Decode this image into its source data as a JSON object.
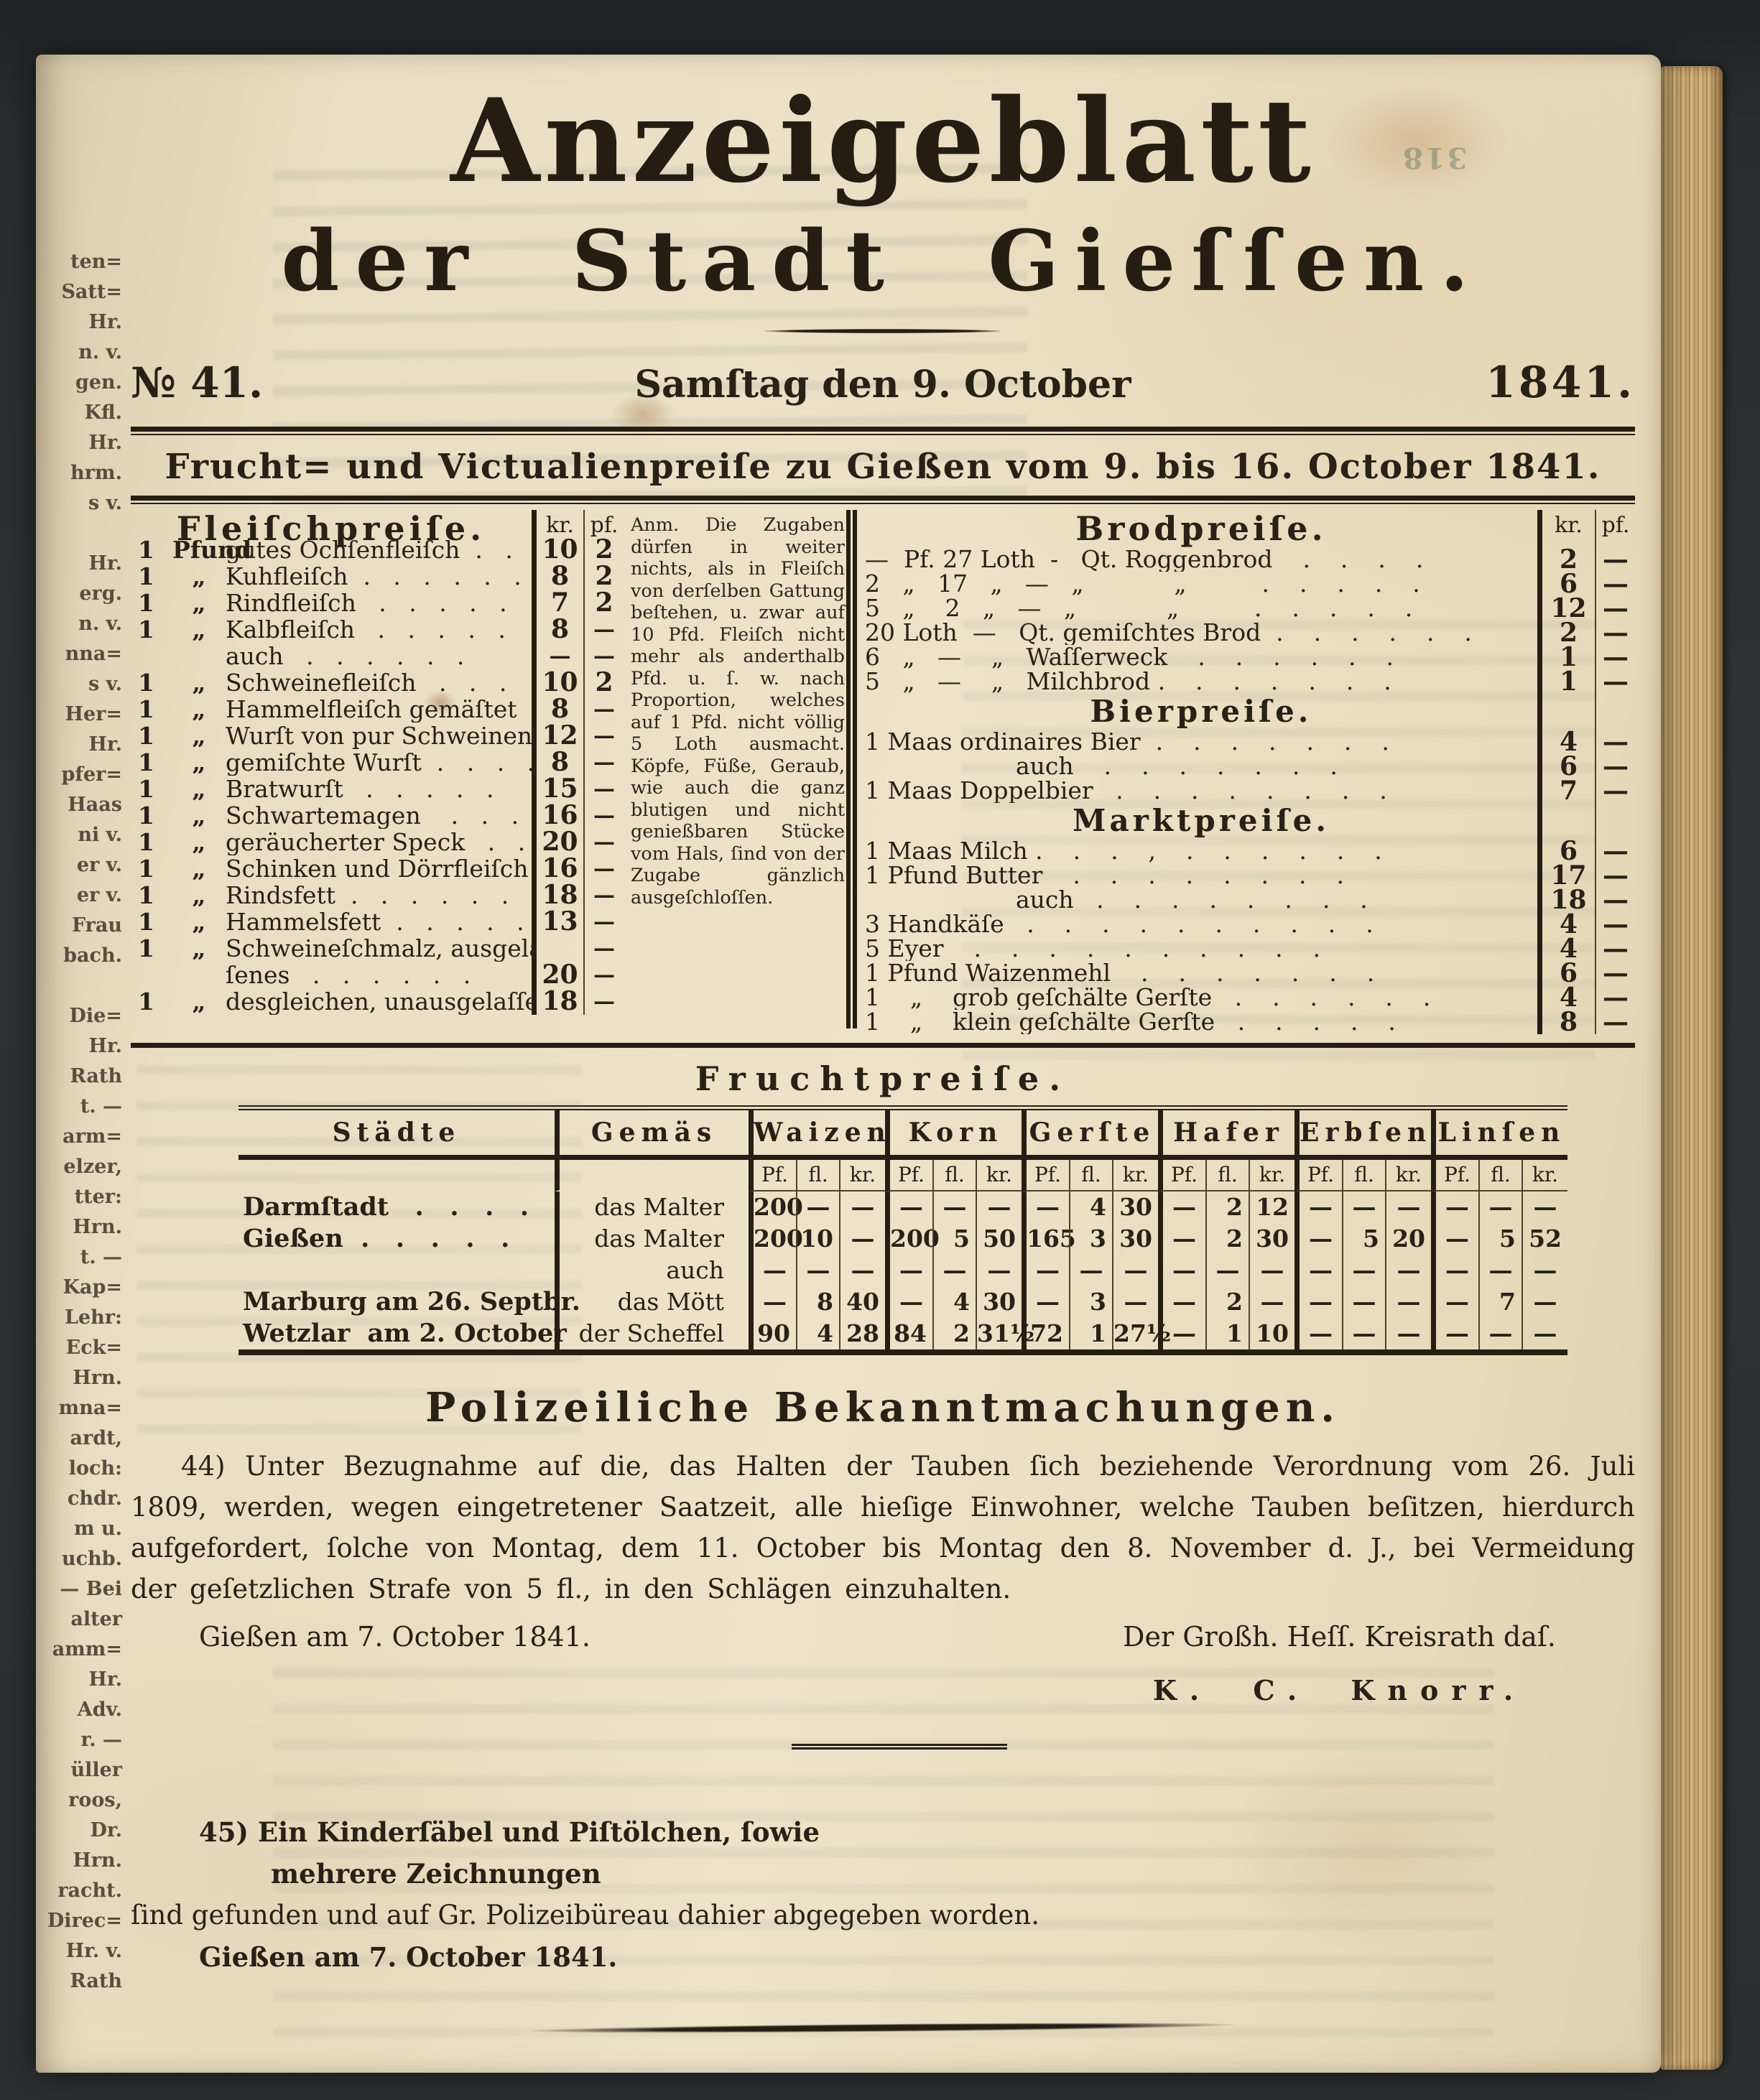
{
  "book": {
    "bleedthrough_page_number": "318"
  },
  "margin_fragments": [
    "ten=",
    "Satt=",
    "Hr.",
    "n. v.",
    "gen.",
    "Kfl.",
    "Hr.",
    "hrm.",
    "s v.",
    "",
    "Hr.",
    "erg.",
    "n. v.",
    "nna=",
    "s v.",
    "Her=",
    "Hr.",
    "pfer=",
    "Haas",
    "ni v.",
    "er v.",
    "er v.",
    "Frau",
    "bach.",
    "",
    "Die=",
    "Hr.",
    "Rath",
    "t. —",
    "arm=",
    "elzer,",
    "tter:",
    "Hrn.",
    "t. —",
    "Kap=",
    "Lehr:",
    "Eck=",
    "Hrn.",
    "mna=",
    "ardt,",
    "loch:",
    "chdr.",
    "m u.",
    "uchb.",
    "— Bei",
    "alter",
    "amm=",
    "Hr.",
    "Adv.",
    "r. —",
    "üller",
    "roos,",
    "Dr.",
    "Hrn.",
    "racht.",
    "Direc=",
    "Hr. v.",
    "Rath"
  ],
  "masthead": {
    "title_line1": "Anzeigeblatt",
    "title_line2": "der Stadt Gieſſen.",
    "issue_no": "№ 41.",
    "issue_date": "Samſtag den 9. October",
    "issue_year": "1841."
  },
  "banner": "Frucht= und Victualienpreiſe zu Gießen vom 9. bis 16. October 1841.",
  "units": {
    "kr": "kr.",
    "pf": "pf."
  },
  "fleisch": {
    "title": "Fleiſchpreiſe.",
    "rows": [
      {
        "q": "1",
        "u": "Pfund",
        "label": "gutes Ochſenfleiſch  .   .   .",
        "kr": "10",
        "pf": "2"
      },
      {
        "q": "1",
        "u": "„",
        "label": "Kuhfleiſch  .   .   .   .   .   .",
        "kr": "8",
        "pf": "2"
      },
      {
        "q": "1",
        "u": "„",
        "label": "Rindfleiſch   .   .   .   .   .",
        "kr": "7",
        "pf": "2"
      },
      {
        "q": "1",
        "u": "„",
        "label": "Kalbfleiſch   .   .   .   .   .",
        "kr": "8",
        "pf": "—"
      },
      {
        "q": "",
        "u": "",
        "label": "auch   .   .   .   .   .   .",
        "kr": "—",
        "pf": "—"
      },
      {
        "q": "1",
        "u": "„",
        "label": "Schweinefleiſch   .   .   .",
        "kr": "10",
        "pf": "2"
      },
      {
        "q": "1",
        "u": "„",
        "label": "Hammelfleiſch gemäſtet   .",
        "kr": "8",
        "pf": "—"
      },
      {
        "q": "1",
        "u": "„",
        "label": "Wurſt von pur Schweinen ,",
        "kr": "12",
        "pf": "—"
      },
      {
        "q": "1",
        "u": "„",
        "label": "gemiſchte Wurſt  .   .   .   .",
        "kr": "8",
        "pf": "—"
      },
      {
        "q": "1",
        "u": "„",
        "label": "Bratwurſt   .   .   .   .   .",
        "kr": "15",
        "pf": "—"
      },
      {
        "q": "1",
        "u": "„",
        "label": "Schwartemagen    .   .   .",
        "kr": "16",
        "pf": "—"
      },
      {
        "q": "1",
        "u": "„",
        "label": "geräucherter Speck   .   .   .",
        "kr": "20",
        "pf": "—"
      },
      {
        "q": "1",
        "u": "„",
        "label": "Schinken und Dörrfleiſch   .",
        "kr": "16",
        "pf": "—"
      },
      {
        "q": "1",
        "u": "„",
        "label": "Rindsfett  .   .   .   .   .   .",
        "kr": "18",
        "pf": "—"
      },
      {
        "q": "1",
        "u": "„",
        "label": "Hammelsfett  .   .   .   .   .",
        "kr": "13",
        "pf": "—"
      },
      {
        "q": "1",
        "u": "„",
        "label": "Schweineſchmalz, ausgelaſ=",
        "kr": "",
        "pf": "—"
      },
      {
        "q": "",
        "u": "",
        "label": "ſenes   .   .   .   .   .   .",
        "kr": "20",
        "pf": "—"
      },
      {
        "q": "1",
        "u": "„",
        "label": "desgleichen, unausgelaſſen",
        "kr": "18",
        "pf": "—"
      }
    ],
    "note": "Anm. Die Zugaben dürfen in weiter nichts, als in Fleiſch von derſelben Gattung beſtehen, u. zwar auf 10 Pfd. Fleiſch nicht mehr als anderthalb Pfd. u. ſ. w. nach Proportion, welches auf 1 Pfd. nicht völlig 5 Loth ausmacht. Köpfe, Füße, Geraub, wie auch die ganz blutigen und nicht genießbaren Stücke vom Hals, ſind von der Zugabe gänzlich ausgeſchloſſen."
  },
  "brod": {
    "title": "Brodpreiſe.",
    "rows": [
      {
        "label": "—  Pf. 27 Loth  -   Qt. Roggenbrod    .    .    .    .",
        "kr": "2",
        "pf": "—"
      },
      {
        "label": "2   „   17   „   —   „            „          .    .    .    .    .",
        "kr": "6",
        "pf": "—"
      },
      {
        "label": "5   „    2   „   —   „            „          .    .    .    .    .",
        "kr": "12",
        "pf": "—"
      },
      {
        "label": "20 Loth  —   Qt. gemiſchtes Brod  .    .    .    .    .    .",
        "kr": "2",
        "pf": "—"
      },
      {
        "label": "6   „   —    „   Waſſerweck    .    .    .    .    .    .",
        "kr": "1",
        "pf": "—"
      },
      {
        "label": "5   „   —    „   Milchbrod .    .    .    .    .    .    .",
        "kr": "1",
        "pf": "—"
      },
      {
        "heading": "Bierpreiſe."
      },
      {
        "label": "1 Maas ordinaires Bier  .    .    .    .    .    .    .",
        "kr": "4",
        "pf": "—"
      },
      {
        "label": "auch    .    .    .    .    .    .    .",
        "kr": "6",
        "pf": "—",
        "indent": 1
      },
      {
        "label": "1 Maas Doppelbier   .    .    .    .    .    .    .    .",
        "kr": "7",
        "pf": "—"
      },
      {
        "heading": "Marktpreiſe."
      },
      {
        "label": "1 Maas Milch .    .    .    ,    .    .    .    .    .    .",
        "kr": "6",
        "pf": "—"
      },
      {
        "label": "1 Pfund Butter    .    .    .    .    .    .    .    .",
        "kr": "17",
        "pf": "—"
      },
      {
        "label": "auch   .    .    .    .    .    .    .    .",
        "kr": "18",
        "pf": "—",
        "indent": 1
      },
      {
        "label": "3 Handkäſe   .    .    .    .    .    .    .    .    .    .",
        "kr": "4",
        "pf": "—"
      },
      {
        "label": "5 Eyer    .    .    .    .    .    .    .    .    .    .",
        "kr": "4",
        "pf": "—"
      },
      {
        "label": "1 Pfund Waizenmehl    .    .    .    .    .    .    .",
        "kr": "6",
        "pf": "—"
      },
      {
        "label": "1    „    grob geſchälte Gerſte   .    .    .    .    .    .",
        "kr": "4",
        "pf": "—"
      },
      {
        "label": "1    „    klein geſchälte Gerſte   .    .    .    .    .",
        "kr": "8",
        "pf": "—"
      }
    ]
  },
  "frucht": {
    "title": "Fruchtpreiſe.",
    "col_staedte": "Städte",
    "col_gemaes": "Gemäs",
    "grains": [
      "Waizen",
      "Korn",
      "Gerſte",
      "Hafer",
      "Erbſen",
      "Linſen"
    ],
    "subcols": [
      "Pf.",
      "fl.",
      "kr."
    ],
    "rows": [
      {
        "city": "Darmſtadt   .   .   .   .",
        "measure": "das Malter",
        "vals": [
          [
            "200",
            "—",
            "—"
          ],
          [
            "—",
            "—",
            "—"
          ],
          [
            "—",
            "4",
            "30"
          ],
          [
            "—",
            "2",
            "12"
          ],
          [
            "—",
            "—",
            "—"
          ],
          [
            "—",
            "—",
            "—"
          ]
        ]
      },
      {
        "city": "Gießen  .   .   .   .   .",
        "measure": "das Malter",
        "vals": [
          [
            "200",
            "10",
            "—"
          ],
          [
            "200",
            "5",
            "50"
          ],
          [
            "165",
            "3",
            "30"
          ],
          [
            "—",
            "2",
            "30"
          ],
          [
            "—",
            "5",
            "20"
          ],
          [
            "—",
            "5",
            "52"
          ]
        ]
      },
      {
        "city": "",
        "measure": "auch",
        "vals": [
          [
            "—",
            "—",
            "—"
          ],
          [
            "—",
            "—",
            "—"
          ],
          [
            "—",
            "—",
            "—"
          ],
          [
            "—",
            "—",
            "—"
          ],
          [
            "—",
            "—",
            "—"
          ],
          [
            "—",
            "—",
            "—"
          ]
        ]
      },
      {
        "city": "Marburg am 26. Septbr.",
        "measure": "das Mött",
        "vals": [
          [
            "—",
            "8",
            "40"
          ],
          [
            "—",
            "4",
            "30"
          ],
          [
            "—",
            "3",
            "—"
          ],
          [
            "—",
            "2",
            "—"
          ],
          [
            "—",
            "—",
            "—"
          ],
          [
            "—",
            "7",
            "—"
          ]
        ]
      },
      {
        "city": "Wetzlar  am 2. October",
        "measure": "der Scheffel",
        "vals": [
          [
            "90",
            "4",
            "28"
          ],
          [
            "84",
            "2",
            "31½"
          ],
          [
            "72",
            "1",
            "27½"
          ],
          [
            "—",
            "1",
            "10"
          ],
          [
            "—",
            "—",
            "—"
          ],
          [
            "—",
            "—",
            "—"
          ]
        ]
      }
    ]
  },
  "polizei": {
    "title": "Polizeiliche Bekanntmachungen.",
    "item44": "44)  Unter Bezugnahme auf die, das Halten der Tauben ſich beziehende Verordnung vom 26. Juli 1809, werden, wegen eingetretener Saatzeit, alle hieſige Einwohner, welche Tauben beſitzen, hierdurch aufgefordert, ſolche von Montag, dem 11. October bis Montag den 8. November d. J., bei Vermeidung der geſetzlichen Strafe von 5 fl., in den Schlägen einzuhalten.",
    "place_date_44": "Gießen am 7. October 1841.",
    "signature_office": "Der Großh. Heſſ. Kreisrath daſ.",
    "signature_name": "K. C. Knorr.",
    "item45_line1": "45)   Ein Kinderſäbel und Piſtölchen, ſowie",
    "item45_line2": "mehrere Zeichnungen",
    "item45_line3": "ſind gefunden und auf Gr. Polizeibüreau dahier abgegeben worden.",
    "place_date_45": "Gießen am 7. October 1841."
  },
  "colors": {
    "ink": "#241e13",
    "paper": "#e8dec3",
    "fore_edge": "#c9a972"
  }
}
